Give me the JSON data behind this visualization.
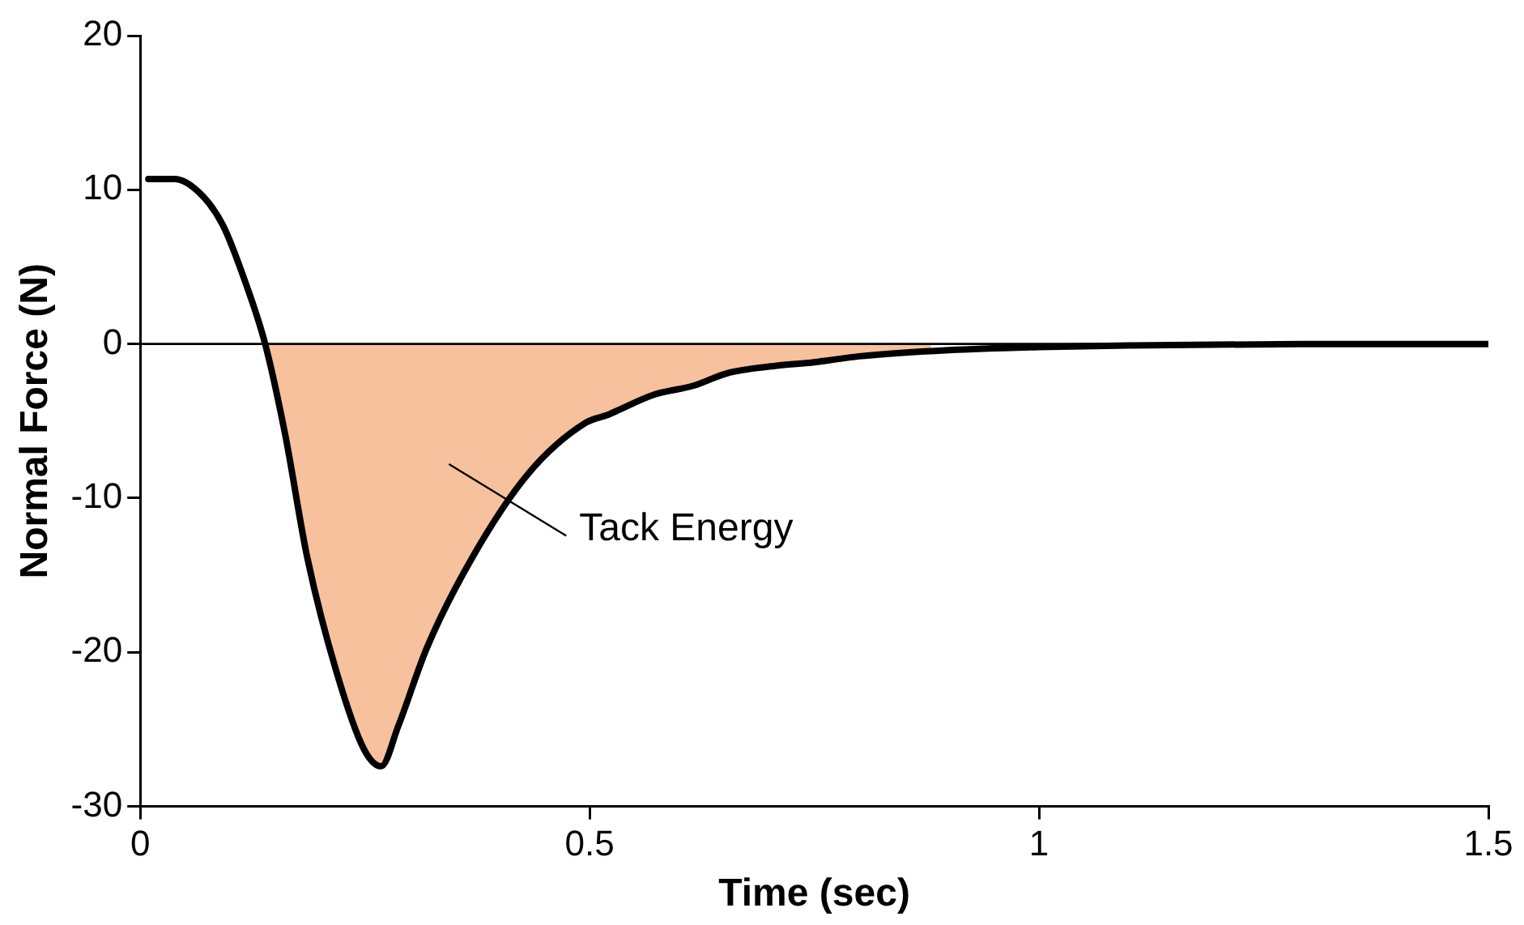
{
  "chart_data": {
    "type": "line",
    "xlabel": "Time (sec)",
    "ylabel": "Normal Force (N)",
    "xlim": [
      0,
      1.5
    ],
    "xticks": [
      0,
      0.5,
      1,
      1.5
    ],
    "ylim": [
      -30,
      20
    ],
    "yticks": [
      -30,
      -20,
      -10,
      0,
      10,
      20
    ],
    "grid": false,
    "legend": false,
    "marker": "none",
    "line_style": "solid",
    "series": [
      {
        "type": "area",
        "color": "#f4b183",
        "x": [
          0.139,
          0.161,
          0.186,
          0.218,
          0.249,
          0.268,
          0.287,
          0.319,
          0.369,
          0.432,
          0.496,
          0.52,
          0.571,
          0.616,
          0.653,
          0.71,
          0.748,
          0.8,
          0.88
        ],
        "values": [
          0,
          -5.8,
          -13.9,
          -21.2,
          -26.3,
          -27.4,
          -24.8,
          -19.7,
          -13.9,
          -8.4,
          -5.1,
          -4.6,
          -3.3,
          -2.7,
          -1.9,
          -1.4,
          -1.2,
          -0.8,
          -0.4
        ]
      },
      {
        "color": "#000000",
        "x": [
          0.009,
          0.038,
          0.066,
          0.092,
          0.117,
          0.139,
          0.161,
          0.186,
          0.218,
          0.249,
          0.268,
          0.287,
          0.319,
          0.369,
          0.432,
          0.496,
          0.52,
          0.571,
          0.616,
          0.653,
          0.71,
          0.748,
          0.8,
          0.9,
          1.0,
          1.1,
          1.3,
          1.5
        ],
        "values": [
          10.7,
          10.7,
          9.8,
          7.7,
          4.0,
          0,
          -5.8,
          -13.9,
          -21.2,
          -26.3,
          -27.4,
          -24.8,
          -19.7,
          -13.9,
          -8.4,
          -5.1,
          -4.6,
          -3.3,
          -2.7,
          -1.9,
          -1.4,
          -1.2,
          -0.8,
          -0.4,
          -0.2,
          -0.1,
          0,
          0
        ]
      }
    ],
    "ref_lines": [
      {
        "axis": "y",
        "value": 0,
        "color": "#000000"
      }
    ],
    "annotations": [
      "Tack Energy"
    ]
  }
}
